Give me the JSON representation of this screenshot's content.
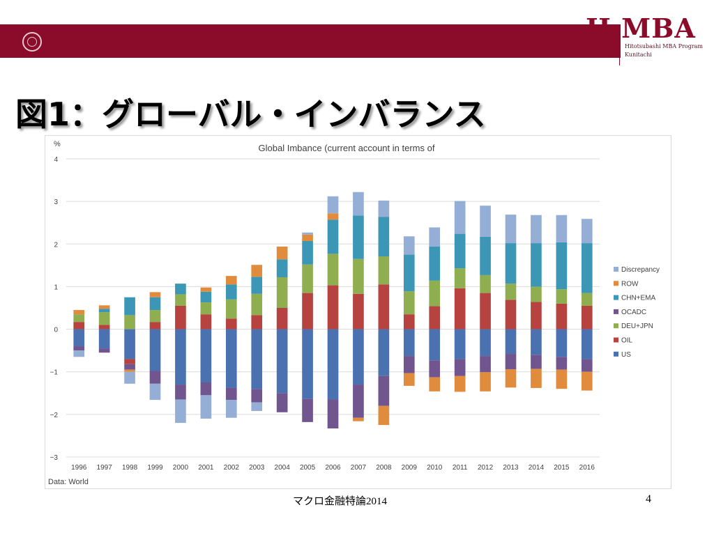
{
  "header": {
    "logo_text": "H MBA",
    "logo_line1": "Hitotsubashi MBA Program",
    "logo_line2": "Kunitachi"
  },
  "slide": {
    "title": "図1：グローバル・インバランス",
    "footer": "マクロ金融特論2014",
    "page_number": "4"
  },
  "colors": {
    "bar": "#8a0b2a",
    "US": "#4a72b0",
    "OIL": "#b6433f",
    "DEU+JPN": "#8fae4f",
    "OCADC": "#71558f",
    "CHN+EMA": "#3b97b5",
    "ROW": "#e18b3d",
    "Discrepancy": "#94aed6"
  },
  "chart_data": {
    "type": "bar",
    "stacked": true,
    "title": "Global Imbance (current account in terms of",
    "ylabel": "%",
    "source": "Data: World",
    "ylim": [
      -3,
      4
    ],
    "yticks": [
      4,
      3,
      2,
      1,
      0,
      -1,
      -2,
      -3
    ],
    "ytick_labels": [
      "4",
      "3",
      "2",
      "1",
      "0",
      "−1",
      "−2",
      "−3"
    ],
    "grid": true,
    "legend_position": "right",
    "legend": [
      "Discrepancy",
      "ROW",
      "CHN+EMA",
      "OCADC",
      "DEU+JPN",
      "OIL",
      "US"
    ],
    "categories": [
      "1996",
      "1997",
      "1998",
      "1999",
      "2000",
      "2001",
      "2002",
      "2003",
      "2004",
      "2005",
      "2006",
      "2007",
      "2008",
      "2009",
      "2010",
      "2011",
      "2012",
      "2013",
      "2014",
      "2015",
      "2016"
    ],
    "series": [
      {
        "name": "US",
        "values": [
          -0.4,
          -0.45,
          -0.7,
          -0.98,
          -1.3,
          -1.25,
          -1.38,
          -1.4,
          -1.5,
          -1.63,
          -1.65,
          -1.3,
          -1.1,
          -0.63,
          -0.73,
          -0.7,
          -0.63,
          -0.58,
          -0.6,
          -0.65,
          -0.7
        ]
      },
      {
        "name": "OIL",
        "values": [
          0.17,
          0.1,
          -0.12,
          0.17,
          0.55,
          0.35,
          0.25,
          0.33,
          0.5,
          0.85,
          1.03,
          0.83,
          1.05,
          0.35,
          0.54,
          0.96,
          0.85,
          0.69,
          0.64,
          0.6,
          0.55
        ]
      },
      {
        "name": "DEU+JPN",
        "values": [
          0.18,
          0.3,
          0.33,
          0.28,
          0.27,
          0.28,
          0.45,
          0.5,
          0.72,
          0.67,
          0.74,
          0.82,
          0.66,
          0.54,
          0.6,
          0.47,
          0.42,
          0.38,
          0.36,
          0.34,
          0.3
        ]
      },
      {
        "name": "OCADC",
        "values": [
          -0.1,
          -0.1,
          -0.13,
          -0.3,
          -0.35,
          -0.3,
          -0.28,
          -0.32,
          -0.45,
          -0.55,
          -0.68,
          -0.78,
          -0.7,
          -0.4,
          -0.4,
          -0.4,
          -0.38,
          -0.36,
          -0.33,
          -0.3,
          -0.3
        ]
      },
      {
        "name": "CHN+EMA",
        "values": [
          0,
          0.08,
          0.42,
          0.3,
          0.25,
          0.25,
          0.35,
          0.4,
          0.42,
          0.55,
          0.8,
          1.02,
          0.93,
          0.86,
          0.8,
          0.81,
          0.9,
          0.95,
          1.02,
          1.1,
          1.17
        ]
      },
      {
        "name": "ROW",
        "values": [
          0.1,
          0.08,
          -0.05,
          0.12,
          0,
          0.1,
          0.2,
          0.28,
          0.3,
          0.15,
          0.15,
          -0.08,
          -0.45,
          -0.3,
          -0.33,
          -0.37,
          -0.45,
          -0.43,
          -0.45,
          -0.45,
          -0.44
        ]
      },
      {
        "name": "Discrepancy",
        "values": [
          -0.15,
          0,
          -0.28,
          -0.38,
          -0.55,
          -0.55,
          -0.42,
          -0.2,
          0,
          0.05,
          0.4,
          0.55,
          0.38,
          0.43,
          0.45,
          0.77,
          0.73,
          0.67,
          0.66,
          0.64,
          0.57
        ]
      }
    ]
  }
}
